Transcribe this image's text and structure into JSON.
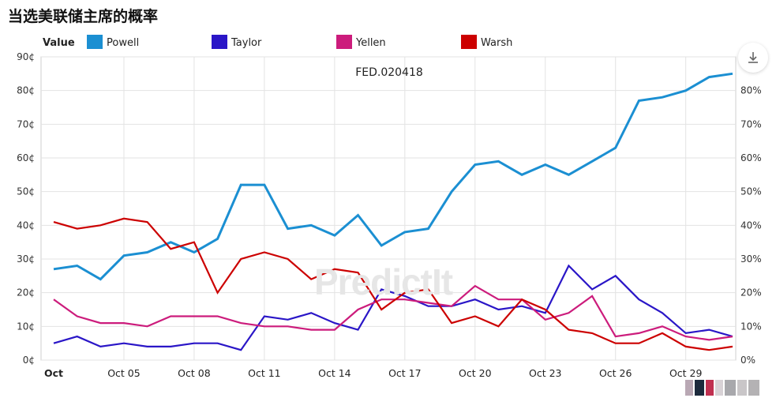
{
  "page": {
    "title": "当选美联储主席的概率",
    "watermark": "PredictIt",
    "chart_annotation": "FED.020418"
  },
  "legend": {
    "label": "Value",
    "placement": "top"
  },
  "icons": {
    "fullscreen": "expand-icon"
  },
  "chart_data": {
    "type": "line",
    "title": "当选美联储主席的概率",
    "x_tick_labels": [
      "Oct",
      "Oct 05",
      "Oct 08",
      "Oct 11",
      "Oct 14",
      "Oct 17",
      "Oct 20",
      "Oct 23",
      "Oct 26",
      "Oct 29"
    ],
    "y_left_ticks": [
      "0¢",
      "10¢",
      "20¢",
      "30¢",
      "40¢",
      "50¢",
      "60¢",
      "70¢",
      "80¢",
      "90¢"
    ],
    "y_right_ticks": [
      "0%",
      "10%",
      "20%",
      "30%",
      "40%",
      "50%",
      "60%",
      "70%",
      "80%",
      "90%"
    ],
    "ylim": [
      0,
      90
    ],
    "grid": true,
    "x": [
      "Oct 02",
      "Oct 03",
      "Oct 04",
      "Oct 05",
      "Oct 06",
      "Oct 07",
      "Oct 08",
      "Oct 09",
      "Oct 10",
      "Oct 11",
      "Oct 12",
      "Oct 13",
      "Oct 14",
      "Oct 15",
      "Oct 16",
      "Oct 17",
      "Oct 18",
      "Oct 19",
      "Oct 20",
      "Oct 21",
      "Oct 22",
      "Oct 23",
      "Oct 24",
      "Oct 25",
      "Oct 26",
      "Oct 27",
      "Oct 28",
      "Oct 29",
      "Oct 30",
      "Oct 31"
    ],
    "series": [
      {
        "name": "Powell",
        "color": "#1b8fd2",
        "values": [
          27,
          28,
          24,
          31,
          32,
          35,
          32,
          36,
          52,
          52,
          39,
          40,
          37,
          43,
          34,
          38,
          39,
          50,
          58,
          59,
          55,
          58,
          55,
          59,
          63,
          77,
          78,
          80,
          84,
          85
        ]
      },
      {
        "name": "Taylor",
        "color": "#2a16c7",
        "values": [
          5,
          7,
          4,
          5,
          4,
          4,
          5,
          5,
          3,
          13,
          12,
          14,
          11,
          9,
          21,
          19,
          16,
          16,
          18,
          15,
          16,
          14,
          28,
          21,
          25,
          18,
          14,
          8,
          9,
          7
        ]
      },
      {
        "name": "Yellen",
        "color": "#cc1c7c",
        "values": [
          18,
          13,
          11,
          11,
          10,
          13,
          13,
          13,
          11,
          10,
          10,
          9,
          9,
          15,
          18,
          18,
          17,
          16,
          22,
          18,
          18,
          12,
          14,
          19,
          7,
          8,
          10,
          7,
          6,
          7
        ]
      },
      {
        "name": "Warsh",
        "color": "#cc0000",
        "values": [
          41,
          39,
          40,
          42,
          41,
          33,
          35,
          20,
          30,
          32,
          30,
          24,
          27,
          26,
          15,
          20,
          21,
          11,
          13,
          10,
          18,
          15,
          9,
          8,
          5,
          5,
          8,
          4,
          3,
          4
        ]
      }
    ]
  }
}
